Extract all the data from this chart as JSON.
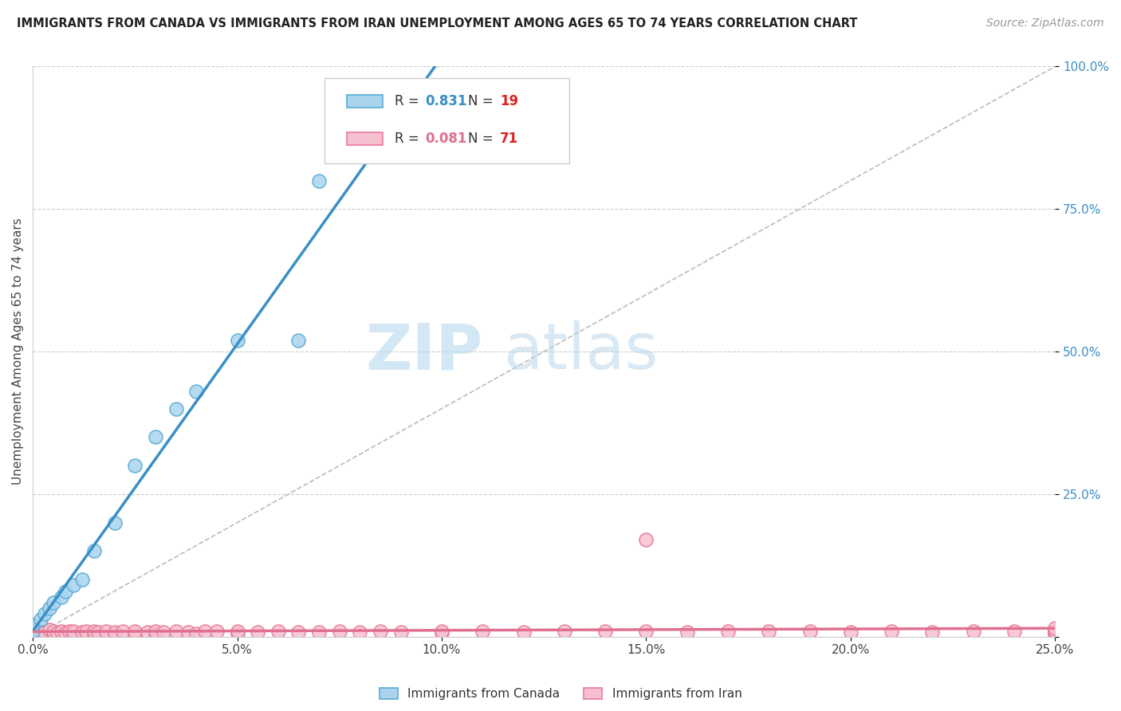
{
  "title": "IMMIGRANTS FROM CANADA VS IMMIGRANTS FROM IRAN UNEMPLOYMENT AMONG AGES 65 TO 74 YEARS CORRELATION CHART",
  "source": "Source: ZipAtlas.com",
  "ylabel": "Unemployment Among Ages 65 to 74 years",
  "legend_label_canada": "Immigrants from Canada",
  "legend_label_iran": "Immigrants from Iran",
  "R_canada": 0.831,
  "N_canada": 19,
  "R_iran": 0.081,
  "N_iran": 71,
  "color_canada_fill": "#aad4ee",
  "color_iran_fill": "#f7c0d0",
  "color_canada_edge": "#5aaad5",
  "color_iran_edge": "#e87a9a",
  "color_canada_line": "#3a8fc5",
  "color_iran_line": "#e07090",
  "color_diag": "#bbbbbb",
  "background_color": "#ffffff",
  "grid_color": "#cccccc",
  "watermark_zip": "ZIP",
  "watermark_atlas": "atlas",
  "xlim": [
    0.0,
    0.25
  ],
  "ylim": [
    0.0,
    1.0
  ],
  "xticks": [
    0.0,
    0.05,
    0.1,
    0.15,
    0.2,
    0.25
  ],
  "yticks": [
    0.0,
    0.25,
    0.5,
    0.75,
    1.0
  ],
  "xtick_labels": [
    "0.0%",
    "5.0%",
    "10.0%",
    "15.0%",
    "20.0%",
    "25.0%"
  ],
  "ytick_labels_right": [
    "",
    "25.0%",
    "50.0%",
    "75.0%",
    "100.0%"
  ],
  "canada_x": [
    0.0,
    0.0,
    0.002,
    0.003,
    0.004,
    0.005,
    0.007,
    0.008,
    0.01,
    0.012,
    0.015,
    0.02,
    0.025,
    0.03,
    0.035,
    0.04,
    0.05,
    0.065,
    0.07
  ],
  "canada_y": [
    0.01,
    0.02,
    0.03,
    0.04,
    0.05,
    0.06,
    0.07,
    0.08,
    0.09,
    0.1,
    0.15,
    0.2,
    0.3,
    0.35,
    0.4,
    0.43,
    0.52,
    0.52,
    0.8
  ],
  "iran_x": [
    0.0,
    0.0,
    0.0,
    0.0,
    0.0,
    0.002,
    0.002,
    0.003,
    0.004,
    0.005,
    0.005,
    0.006,
    0.007,
    0.008,
    0.009,
    0.01,
    0.01,
    0.012,
    0.013,
    0.015,
    0.015,
    0.016,
    0.018,
    0.02,
    0.02,
    0.022,
    0.025,
    0.025,
    0.028,
    0.03,
    0.03,
    0.032,
    0.035,
    0.038,
    0.04,
    0.042,
    0.045,
    0.05,
    0.05,
    0.055,
    0.06,
    0.065,
    0.07,
    0.075,
    0.08,
    0.085,
    0.09,
    0.1,
    0.1,
    0.11,
    0.12,
    0.13,
    0.14,
    0.15,
    0.15,
    0.16,
    0.17,
    0.18,
    0.19,
    0.2,
    0.21,
    0.22,
    0.23,
    0.24,
    0.25,
    0.25,
    0.25,
    0.25,
    0.25,
    0.25,
    0.25
  ],
  "iran_y": [
    0.005,
    0.008,
    0.01,
    0.013,
    0.015,
    0.005,
    0.01,
    0.008,
    0.012,
    0.004,
    0.01,
    0.007,
    0.01,
    0.006,
    0.01,
    0.005,
    0.009,
    0.008,
    0.01,
    0.005,
    0.01,
    0.008,
    0.01,
    0.005,
    0.008,
    0.01,
    0.005,
    0.009,
    0.008,
    0.005,
    0.009,
    0.008,
    0.01,
    0.008,
    0.005,
    0.009,
    0.01,
    0.005,
    0.009,
    0.008,
    0.01,
    0.008,
    0.008,
    0.01,
    0.008,
    0.01,
    0.008,
    0.007,
    0.01,
    0.009,
    0.008,
    0.01,
    0.009,
    0.01,
    0.17,
    0.008,
    0.009,
    0.01,
    0.009,
    0.008,
    0.01,
    0.008,
    0.01,
    0.009,
    0.005,
    0.006,
    0.007,
    0.008,
    0.009,
    0.01,
    0.015
  ],
  "figsize": [
    14.06,
    8.92
  ],
  "dpi": 100,
  "title_fontsize": 10.5,
  "source_fontsize": 10,
  "ylabel_fontsize": 11,
  "tick_fontsize": 11,
  "legend_fontsize": 12,
  "watermark_fontsize_zip": 58,
  "watermark_fontsize_atlas": 58
}
